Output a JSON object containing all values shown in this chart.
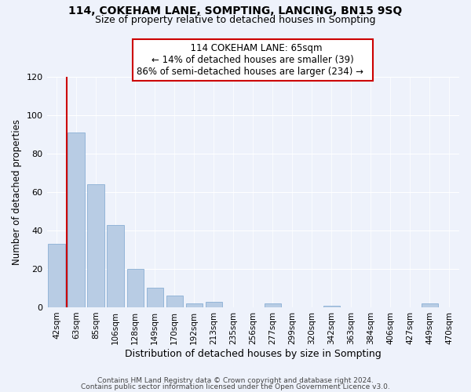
{
  "title": "114, COKEHAM LANE, SOMPTING, LANCING, BN15 9SQ",
  "subtitle": "Size of property relative to detached houses in Sompting",
  "xlabel": "Distribution of detached houses by size in Sompting",
  "ylabel": "Number of detached properties",
  "bar_labels": [
    "42sqm",
    "63sqm",
    "85sqm",
    "106sqm",
    "128sqm",
    "149sqm",
    "170sqm",
    "192sqm",
    "213sqm",
    "235sqm",
    "256sqm",
    "277sqm",
    "299sqm",
    "320sqm",
    "342sqm",
    "363sqm",
    "384sqm",
    "406sqm",
    "427sqm",
    "449sqm",
    "470sqm"
  ],
  "bar_values": [
    33,
    91,
    64,
    43,
    20,
    10,
    6,
    2,
    3,
    0,
    0,
    2,
    0,
    0,
    1,
    0,
    0,
    0,
    0,
    2,
    0
  ],
  "bar_color": "#b8cce4",
  "bar_edge_color": "#8aafd4",
  "vline_x": 0.5,
  "vline_color": "#cc0000",
  "annotation_title": "114 COKEHAM LANE: 65sqm",
  "annotation_line1": "← 14% of detached houses are smaller (39)",
  "annotation_line2": "86% of semi-detached houses are larger (234) →",
  "annotation_box_color": "#ffffff",
  "annotation_box_edge": "#cc0000",
  "ylim": [
    0,
    120
  ],
  "yticks": [
    0,
    20,
    40,
    60,
    80,
    100,
    120
  ],
  "footer1": "Contains HM Land Registry data © Crown copyright and database right 2024.",
  "footer2": "Contains public sector information licensed under the Open Government Licence v3.0.",
  "bg_color": "#eef2fb",
  "grid_color": "#ffffff",
  "title_fontsize": 10,
  "subtitle_fontsize": 9
}
